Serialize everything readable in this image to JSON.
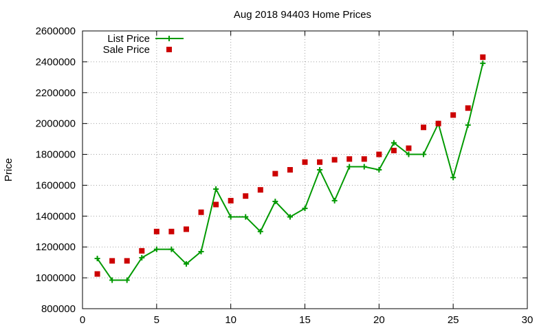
{
  "chart_data": {
    "type": "line",
    "title": "Aug 2018 94403 Home Prices",
    "xlabel": "",
    "ylabel": "Price",
    "xlim": [
      0,
      30
    ],
    "ylim": [
      800000,
      2600000
    ],
    "x_ticks": [
      0,
      5,
      10,
      15,
      20,
      25,
      30
    ],
    "y_ticks": [
      800000,
      1000000,
      1200000,
      1400000,
      1600000,
      1800000,
      2000000,
      2200000,
      2400000,
      2600000
    ],
    "grid": true,
    "legend_position": "top-left",
    "series": [
      {
        "name": "List Price",
        "style": "line-with-plus-markers",
        "color": "#009900",
        "x": [
          1,
          2,
          3,
          4,
          5,
          6,
          7,
          8,
          9,
          10,
          11,
          12,
          13,
          14,
          15,
          16,
          17,
          18,
          19,
          20,
          21,
          22,
          23,
          24,
          25,
          26,
          27
        ],
        "values": [
          1125000,
          985000,
          985000,
          1130000,
          1185000,
          1185000,
          1090000,
          1170000,
          1575000,
          1395000,
          1395000,
          1300000,
          1495000,
          1395000,
          1450000,
          1700000,
          1500000,
          1720000,
          1720000,
          1700000,
          1875000,
          1800000,
          1800000,
          2000000,
          1650000,
          1990000,
          2390000
        ]
      },
      {
        "name": "Sale Price",
        "style": "square-markers",
        "color": "#cc0000",
        "x": [
          1,
          2,
          3,
          4,
          5,
          6,
          7,
          8,
          9,
          10,
          11,
          12,
          13,
          14,
          15,
          16,
          17,
          18,
          19,
          20,
          21,
          22,
          23,
          24,
          25,
          26,
          27
        ],
        "values": [
          1025000,
          1110000,
          1110000,
          1175000,
          1300000,
          1300000,
          1315000,
          1425000,
          1475000,
          1500000,
          1530000,
          1570000,
          1675000,
          1700000,
          1750000,
          1750000,
          1765000,
          1770000,
          1770000,
          1800000,
          1825000,
          1840000,
          1975000,
          2000000,
          2055000,
          2100000,
          2430000
        ]
      }
    ]
  }
}
